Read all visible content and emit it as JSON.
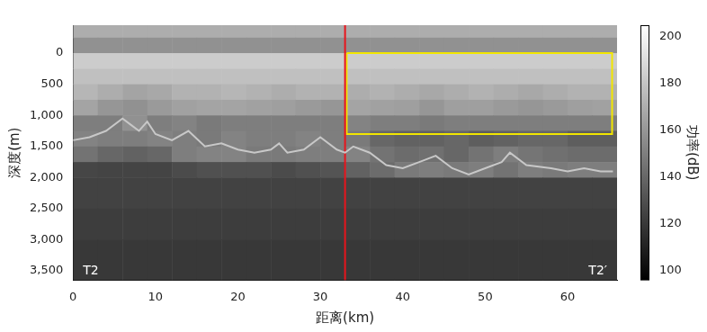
{
  "chart_data": {
    "type": "heatmap",
    "x_label": "距离(km)",
    "y_label": "深度(m)",
    "xlim": [
      0,
      66
    ],
    "xticks": [
      0,
      10,
      20,
      30,
      40,
      50,
      60
    ],
    "ylim": [
      -450,
      3650
    ],
    "yticks": [
      0,
      500,
      1000,
      1500,
      2000,
      2500,
      3000,
      3500
    ],
    "grid": false,
    "heatmap": {
      "x_edges": [
        0,
        3,
        6,
        9,
        12,
        15,
        18,
        21,
        24,
        27,
        30,
        33,
        36,
        39,
        42,
        45,
        48,
        51,
        54,
        57,
        60,
        63,
        66
      ],
      "y_edges": [
        -450,
        -250,
        0,
        250,
        500,
        750,
        1000,
        1250,
        1500,
        1750,
        2000,
        2500,
        3000,
        3650
      ],
      "cells": [
        [
          170,
          170,
          170,
          170,
          170,
          170,
          170,
          170,
          170,
          170,
          170,
          170,
          170,
          170,
          170,
          170,
          170,
          170,
          170,
          170,
          170,
          170
        ],
        [
          158,
          158,
          158,
          158,
          158,
          158,
          158,
          158,
          158,
          158,
          158,
          158,
          158,
          158,
          158,
          158,
          158,
          158,
          158,
          158,
          158,
          158
        ],
        [
          183,
          183,
          183,
          183,
          183,
          183,
          183,
          183,
          183,
          183,
          183,
          183,
          183,
          183,
          183,
          183,
          183,
          183,
          183,
          183,
          183,
          183
        ],
        [
          178,
          178,
          178,
          178,
          178,
          178,
          178,
          178,
          178,
          178,
          178,
          178,
          178,
          178,
          178,
          178,
          178,
          178,
          178,
          178,
          178,
          178
        ],
        [
          174,
          170,
          166,
          168,
          172,
          172,
          174,
          172,
          170,
          172,
          172,
          170,
          172,
          170,
          168,
          170,
          172,
          170,
          168,
          170,
          172,
          172
        ],
        [
          166,
          160,
          158,
          162,
          165,
          166,
          166,
          165,
          164,
          162,
          160,
          166,
          165,
          164,
          160,
          164,
          164,
          162,
          160,
          162,
          164,
          165
        ],
        [
          150,
          150,
          158,
          150,
          152,
          148,
          150,
          150,
          150,
          150,
          150,
          152,
          150,
          150,
          148,
          150,
          150,
          150,
          150,
          150,
          150,
          150
        ],
        [
          152,
          150,
          150,
          152,
          150,
          148,
          152,
          150,
          150,
          152,
          150,
          148,
          140,
          138,
          138,
          140,
          136,
          138,
          140,
          140,
          136,
          136
        ],
        [
          145,
          140,
          138,
          140,
          150,
          152,
          152,
          148,
          148,
          150,
          150,
          152,
          145,
          142,
          144,
          140,
          145,
          150,
          146,
          144,
          142,
          142
        ],
        [
          126,
          125,
          125,
          125,
          128,
          130,
          130,
          130,
          128,
          130,
          132,
          138,
          142,
          148,
          150,
          148,
          150,
          145,
          150,
          148,
          150,
          150
        ],
        [
          124,
          124,
          124,
          124,
          124,
          124,
          124,
          124,
          124,
          124,
          124,
          124,
          124,
          124,
          124,
          124,
          124,
          124,
          124,
          124,
          124,
          124
        ],
        [
          122,
          122,
          122,
          122,
          122,
          122,
          122,
          122,
          122,
          122,
          122,
          122,
          122,
          122,
          122,
          122,
          122,
          122,
          122,
          122,
          122,
          122
        ],
        [
          120,
          120,
          120,
          120,
          120,
          120,
          120,
          120,
          120,
          120,
          120,
          120,
          120,
          120,
          120,
          120,
          120,
          120,
          120,
          120,
          120,
          120
        ]
      ],
      "clim": [
        96,
        205
      ],
      "cticks": [
        100,
        120,
        140,
        160,
        180,
        200
      ],
      "colorbar_label": "功率(dB)"
    },
    "series": [
      {
        "color": "#c8c8c8",
        "line_style": "solid",
        "x": [
          0,
          2,
          4,
          6,
          7,
          8,
          9,
          10,
          12,
          14,
          16,
          18,
          20,
          22,
          24,
          25,
          26,
          28,
          30,
          32,
          33,
          34,
          36,
          38,
          40,
          42,
          44,
          46,
          48,
          50,
          52,
          53,
          55,
          58,
          60,
          62,
          64,
          65.5
        ],
        "values": [
          1400,
          1350,
          1250,
          1050,
          1150,
          1250,
          1100,
          1300,
          1400,
          1250,
          1500,
          1450,
          1550,
          1600,
          1550,
          1450,
          1600,
          1550,
          1350,
          1550,
          1600,
          1500,
          1600,
          1800,
          1850,
          1750,
          1650,
          1850,
          1950,
          1850,
          1750,
          1600,
          1800,
          1850,
          1900,
          1850,
          1900,
          1900
        ]
      },
      {
        "color": "#e8141c",
        "line_style": "solid",
        "x": [
          33,
          33
        ],
        "values": [
          -450,
          3650
        ]
      },
      {
        "color": "#f2e600",
        "line_style": "solid",
        "x": [
          33.2,
          65.4,
          65.4,
          33.2,
          33.2
        ],
        "values": [
          0,
          0,
          1300,
          1300,
          0
        ]
      }
    ],
    "annotations": [
      {
        "text": "T2",
        "x": 1.2,
        "y": 3500
      },
      {
        "text": "T2′",
        "x": 64.8,
        "y": 3500
      }
    ]
  }
}
